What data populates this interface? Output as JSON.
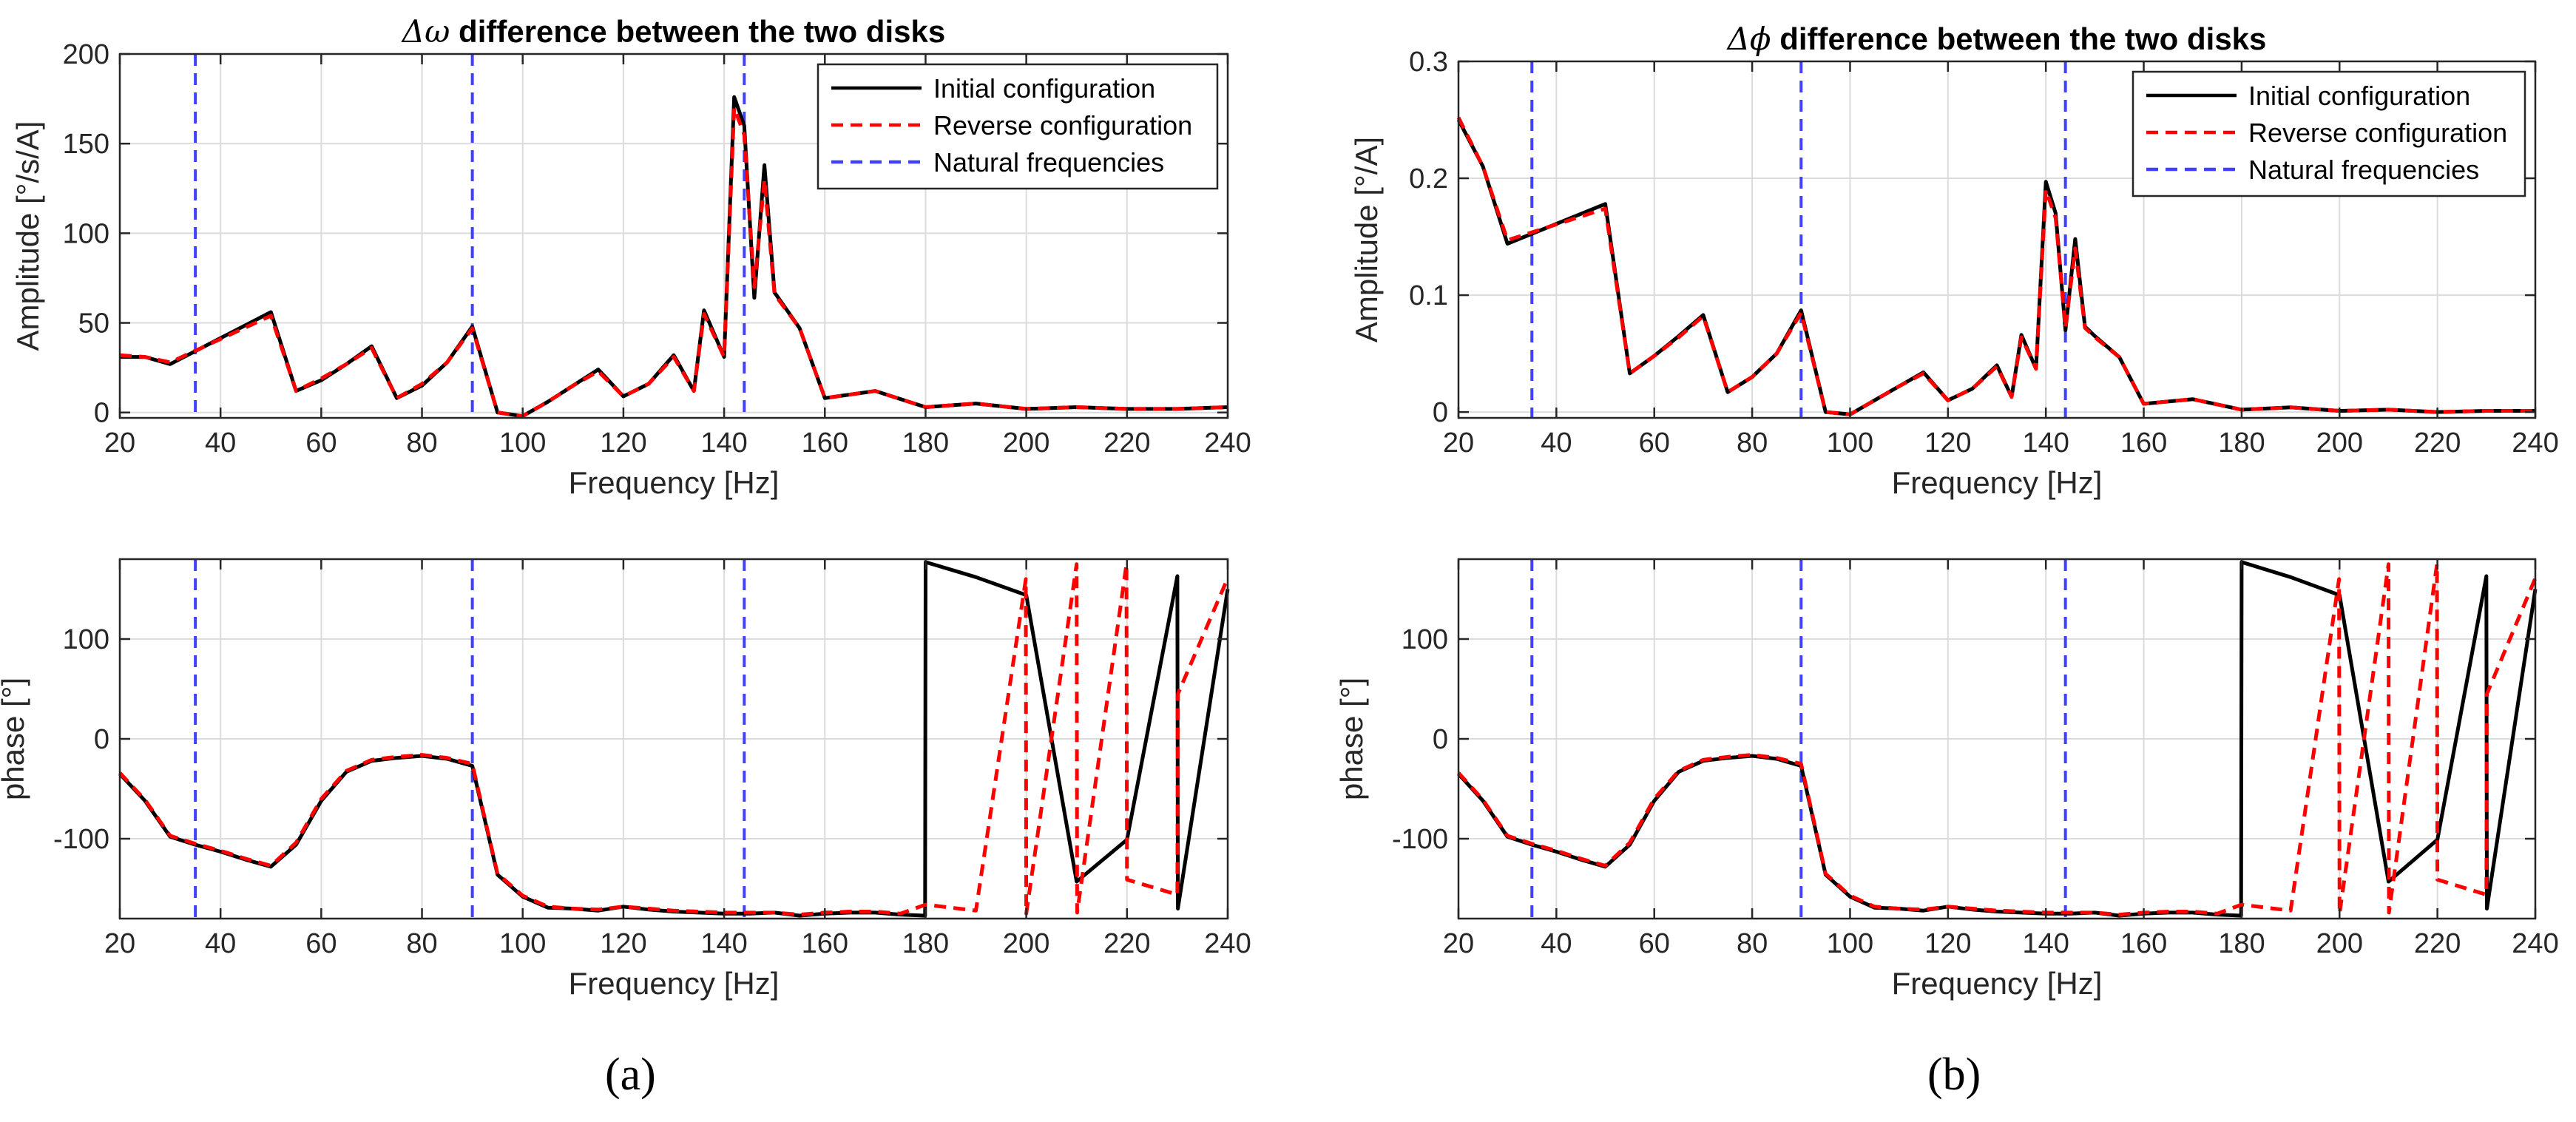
{
  "figure": {
    "panel_labels": [
      "(a)",
      "(b)"
    ]
  },
  "colors": {
    "initial": "#000000",
    "reverse": "#ff0000",
    "natural": "#4040ff",
    "grid": "#dcdcdc",
    "axis": "#262626"
  },
  "chart_data": [
    {
      "id": "a-amplitude",
      "type": "line",
      "title_symbol": "Δω",
      "title_rest": " difference between the two disks",
      "xlabel": "Frequency [Hz]",
      "ylabel": "Amplitude [°/s/A]",
      "xlim": [
        20,
        240
      ],
      "ylim": [
        -3,
        200
      ],
      "xticks": [
        20,
        40,
        60,
        80,
        100,
        120,
        140,
        160,
        180,
        200,
        220,
        240
      ],
      "yticks": [
        0,
        50,
        100,
        150,
        200
      ],
      "ytick_labels": [
        "0",
        "50",
        "100",
        "150",
        "200"
      ],
      "legend": {
        "position": "top-right",
        "entries": [
          "Initial configuration",
          "Reverse configuration",
          "Natural frequencies"
        ]
      },
      "natural_frequencies": [
        35,
        90,
        144
      ],
      "series": [
        {
          "name": "Initial configuration",
          "x": [
            20,
            25,
            30,
            50,
            55,
            60,
            65,
            70,
            75,
            80,
            85,
            90,
            95,
            100,
            105,
            110,
            115,
            120,
            125,
            130,
            134,
            136,
            140,
            142,
            144,
            146,
            148,
            150,
            155,
            160,
            170,
            180,
            190,
            200,
            210,
            220,
            230,
            240
          ],
          "y": [
            31,
            31,
            27,
            56,
            12,
            18,
            27,
            37,
            8,
            15,
            28,
            48,
            0,
            -2,
            6,
            15,
            24,
            9,
            16,
            32,
            12,
            57,
            31,
            176,
            160,
            64,
            138,
            67,
            47,
            8,
            12,
            3,
            5,
            2,
            3,
            2,
            2,
            3
          ]
        },
        {
          "name": "Reverse configuration",
          "x": [
            20,
            25,
            30,
            50,
            55,
            60,
            65,
            70,
            75,
            80,
            85,
            90,
            95,
            100,
            105,
            110,
            115,
            120,
            125,
            130,
            134,
            136,
            140,
            142,
            144,
            146,
            148,
            150,
            155,
            160,
            170,
            180,
            190,
            200,
            210,
            220,
            230,
            240
          ],
          "y": [
            32,
            31,
            28,
            54,
            12,
            19,
            27,
            36,
            8,
            16,
            28,
            47,
            0,
            -2,
            6,
            15,
            23,
            9,
            16,
            31,
            12,
            55,
            31,
            170,
            155,
            70,
            130,
            66,
            47,
            8,
            12,
            3,
            5,
            2,
            3,
            2,
            2,
            3
          ]
        }
      ]
    },
    {
      "id": "a-phase",
      "type": "line",
      "xlabel": "Frequency [Hz]",
      "ylabel": "phase [°]",
      "xlim": [
        20,
        240
      ],
      "ylim": [
        -180,
        180
      ],
      "xticks": [
        20,
        40,
        60,
        80,
        100,
        120,
        140,
        160,
        180,
        200,
        220,
        240
      ],
      "yticks": [
        -100,
        0,
        100
      ],
      "ytick_labels": [
        "-100",
        "0",
        "100"
      ],
      "natural_frequencies": [
        35,
        90,
        144
      ],
      "series": [
        {
          "name": "Initial configuration",
          "x": [
            20,
            25,
            30,
            35,
            40,
            45,
            50,
            55,
            60,
            65,
            70,
            75,
            80,
            85,
            90,
            95,
            100,
            105,
            110,
            115,
            120,
            125,
            130,
            135,
            140,
            145,
            150,
            155,
            160,
            165,
            170,
            175,
            179.9,
            180,
            190,
            200,
            210,
            220,
            230,
            230.1,
            240
          ],
          "y": [
            -35,
            -62,
            -98,
            -106,
            -113,
            -121,
            -128,
            -106,
            -62,
            -33,
            -22,
            -19,
            -17,
            -20,
            -27,
            -136,
            -158,
            -169,
            -170,
            -172,
            -168,
            -171,
            -173,
            -174,
            -175,
            -175,
            -174,
            -177,
            -175,
            -174,
            -174,
            -176,
            -177,
            177,
            162,
            144,
            -143,
            -101,
            163,
            -170,
            150
          ]
        },
        {
          "name": "Reverse configuration",
          "x": [
            20,
            25,
            30,
            35,
            40,
            45,
            50,
            55,
            60,
            65,
            70,
            75,
            80,
            85,
            90,
            95,
            100,
            105,
            110,
            115,
            120,
            125,
            130,
            135,
            140,
            145,
            150,
            155,
            160,
            165,
            170,
            175,
            180,
            190,
            199.9,
            200,
            210,
            210.1,
            219.9,
            220,
            230,
            230.1,
            240
          ],
          "y": [
            -34,
            -61,
            -97,
            -105,
            -112,
            -120,
            -127,
            -104,
            -60,
            -32,
            -21,
            -18,
            -16,
            -19,
            -25,
            -135,
            -157,
            -168,
            -170,
            -171,
            -168,
            -170,
            -172,
            -173,
            -174,
            -174,
            -174,
            -176,
            -174,
            -173,
            -173,
            -175,
            -166,
            -172,
            160,
            -175,
            175,
            -174,
            175,
            -141,
            -156,
            45,
            161
          ]
        }
      ]
    },
    {
      "id": "b-amplitude",
      "type": "line",
      "title_symbol": "Δϕ",
      "title_rest": " difference between the two disks",
      "xlabel": "Frequency [Hz]",
      "ylabel": "Amplitude [°/A]",
      "xlim": [
        20,
        240
      ],
      "ylim": [
        -0.005,
        0.3
      ],
      "xticks": [
        20,
        40,
        60,
        80,
        100,
        120,
        140,
        160,
        180,
        200,
        220,
        240
      ],
      "yticks": [
        0,
        0.1,
        0.2,
        0.3
      ],
      "ytick_labels": [
        "0",
        "0.1",
        "0.2",
        "0.3"
      ],
      "legend": {
        "position": "top-right",
        "entries": [
          "Initial configuration",
          "Reverse configuration",
          "Natural frequencies"
        ]
      },
      "natural_frequencies": [
        35,
        90,
        144
      ],
      "series": [
        {
          "name": "Initial configuration",
          "x": [
            20,
            25,
            30,
            50,
            55,
            60,
            65,
            70,
            75,
            80,
            85,
            90,
            95,
            100,
            105,
            110,
            115,
            120,
            125,
            130,
            133,
            135,
            138,
            140,
            142,
            144,
            146,
            148,
            150,
            155,
            160,
            170,
            180,
            190,
            200,
            210,
            220,
            230,
            240
          ],
          "y": [
            0.25,
            0.21,
            0.144,
            0.178,
            0.033,
            0.048,
            0.065,
            0.083,
            0.017,
            0.03,
            0.05,
            0.087,
            0,
            -0.002,
            0.01,
            0.022,
            0.034,
            0.01,
            0.02,
            0.04,
            0.013,
            0.066,
            0.037,
            0.197,
            0.17,
            0.07,
            0.148,
            0.073,
            0.065,
            0.047,
            0.007,
            0.011,
            0.002,
            0.004,
            0.001,
            0.002,
            0,
            0.001,
            0.001
          ]
        },
        {
          "name": "Reverse configuration",
          "x": [
            20,
            25,
            30,
            50,
            55,
            60,
            65,
            70,
            75,
            80,
            85,
            90,
            95,
            100,
            105,
            110,
            115,
            120,
            125,
            130,
            133,
            135,
            138,
            140,
            142,
            144,
            146,
            148,
            150,
            155,
            160,
            170,
            180,
            190,
            200,
            210,
            220,
            230,
            240
          ],
          "y": [
            0.252,
            0.21,
            0.147,
            0.174,
            0.033,
            0.048,
            0.064,
            0.082,
            0.017,
            0.03,
            0.05,
            0.085,
            0,
            -0.002,
            0.01,
            0.022,
            0.033,
            0.01,
            0.02,
            0.039,
            0.013,
            0.064,
            0.037,
            0.19,
            0.166,
            0.072,
            0.14,
            0.072,
            0.064,
            0.047,
            0.007,
            0.011,
            0.002,
            0.004,
            0.001,
            0.002,
            0,
            0.001,
            0.001
          ]
        }
      ]
    },
    {
      "id": "b-phase",
      "type": "line",
      "xlabel": "Frequency [Hz]",
      "ylabel": "phase [°]",
      "xlim": [
        20,
        240
      ],
      "ylim": [
        -180,
        180
      ],
      "xticks": [
        20,
        40,
        60,
        80,
        100,
        120,
        140,
        160,
        180,
        200,
        220,
        240
      ],
      "yticks": [
        -100,
        0,
        100
      ],
      "ytick_labels": [
        "-100",
        "0",
        "100"
      ],
      "natural_frequencies": [
        35,
        90,
        144
      ],
      "series": [
        {
          "name": "Initial configuration",
          "x": [
            20,
            25,
            30,
            35,
            40,
            45,
            50,
            55,
            60,
            65,
            70,
            75,
            80,
            85,
            90,
            95,
            100,
            105,
            110,
            115,
            120,
            125,
            130,
            135,
            140,
            145,
            150,
            155,
            160,
            165,
            170,
            175,
            179.9,
            180,
            190,
            200,
            210,
            220,
            230,
            230.1,
            240
          ],
          "y": [
            -35,
            -62,
            -98,
            -106,
            -113,
            -121,
            -128,
            -106,
            -62,
            -33,
            -22,
            -19,
            -17,
            -20,
            -27,
            -136,
            -158,
            -169,
            -170,
            -172,
            -168,
            -171,
            -173,
            -174,
            -175,
            -175,
            -174,
            -177,
            -175,
            -174,
            -174,
            -176,
            -177,
            177,
            162,
            144,
            -143,
            -101,
            163,
            -170,
            150
          ]
        },
        {
          "name": "Reverse configuration",
          "x": [
            20,
            25,
            30,
            35,
            40,
            45,
            50,
            55,
            60,
            65,
            70,
            75,
            80,
            85,
            90,
            95,
            100,
            105,
            110,
            115,
            120,
            125,
            130,
            135,
            140,
            145,
            150,
            155,
            160,
            165,
            170,
            175,
            180,
            190,
            199.9,
            200,
            210,
            210.1,
            219.9,
            220,
            230,
            230.1,
            240
          ],
          "y": [
            -34,
            -61,
            -97,
            -105,
            -112,
            -120,
            -127,
            -104,
            -60,
            -32,
            -21,
            -18,
            -16,
            -19,
            -25,
            -135,
            -157,
            -168,
            -170,
            -171,
            -168,
            -170,
            -172,
            -173,
            -174,
            -174,
            -174,
            -176,
            -174,
            -173,
            -173,
            -175,
            -166,
            -172,
            160,
            -175,
            175,
            -174,
            175,
            -141,
            -156,
            45,
            161
          ]
        }
      ]
    }
  ]
}
